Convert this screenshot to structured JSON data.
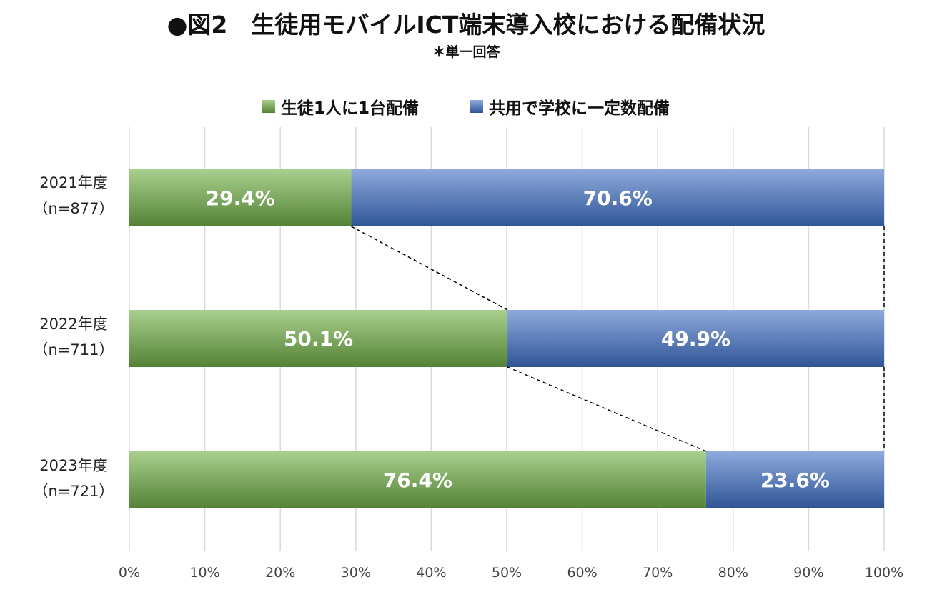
{
  "title": "●図2　生徒用モバイルICT端末導入校における配備状況",
  "subtitle": "＊単一回答",
  "colors": {
    "series1_light": "#a9d08e",
    "series1_dark": "#548235",
    "series2_light": "#8faadc",
    "series2_dark": "#2f5597",
    "grid": "#d9d9d9"
  },
  "chart_data": {
    "type": "bar",
    "orientation": "horizontal",
    "stacked": "100%",
    "categories": [
      {
        "year": "2021年度",
        "n": "（n=877）"
      },
      {
        "year": "2022年度",
        "n": "（n=711）"
      },
      {
        "year": "2023年度",
        "n": "（n=721）"
      }
    ],
    "series": [
      {
        "name": "生徒1人に1台配備",
        "values": [
          29.4,
          50.1,
          76.4
        ],
        "labels": [
          "29.4%",
          "50.1%",
          "76.4%"
        ]
      },
      {
        "name": "共用で学校に一定数配備",
        "values": [
          70.6,
          49.9,
          23.6
        ],
        "labels": [
          "70.6%",
          "49.9%",
          "23.6%"
        ]
      }
    ],
    "xlim": [
      0,
      100
    ],
    "xticks": [
      "0%",
      "10%",
      "20%",
      "30%",
      "40%",
      "50%",
      "60%",
      "70%",
      "80%",
      "90%",
      "100%"
    ],
    "grid": true,
    "legend": "top-center",
    "series_lines": "dashed"
  }
}
